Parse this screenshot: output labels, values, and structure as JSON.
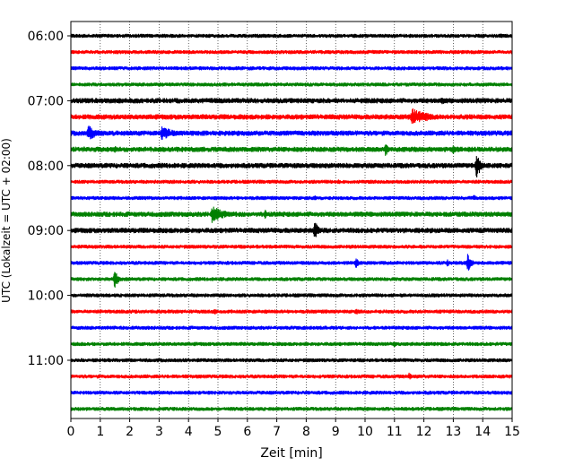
{
  "chart_data": {
    "type": "line",
    "chart_kind": "helicorder",
    "xlabel": "Zeit  [min]",
    "ylabel": "UTC (Lokalzeit = UTC + 02:00)",
    "xlim": [
      0,
      15
    ],
    "x_ticks": [
      "0",
      "1",
      "2",
      "3",
      "4",
      "5",
      "6",
      "7",
      "8",
      "9",
      "10",
      "11",
      "12",
      "13",
      "14",
      "15"
    ],
    "grid": "vertical dotted gridlines at each minute",
    "row_count": 24,
    "row_minutes": 15,
    "y_ticks": [
      {
        "label": "06:00",
        "row": 0
      },
      {
        "label": "07:00",
        "row": 4
      },
      {
        "label": "08:00",
        "row": 8
      },
      {
        "label": "09:00",
        "row": 12
      },
      {
        "label": "10:00",
        "row": 16
      },
      {
        "label": "11:00",
        "row": 20
      }
    ],
    "row_colors": [
      "#000000",
      "#ff0000",
      "#0000ff",
      "#008000"
    ],
    "rows": [
      {
        "start": "06:00",
        "color": "#000000",
        "noise": 1.5,
        "events": [
          {
            "min": 14.6,
            "amp": 4
          }
        ]
      },
      {
        "start": "06:15",
        "color": "#ff0000",
        "noise": 1.5,
        "events": [
          {
            "min": 3.3,
            "amp": 3
          }
        ]
      },
      {
        "start": "06:30",
        "color": "#0000ff",
        "noise": 1.5,
        "events": []
      },
      {
        "start": "06:45",
        "color": "#008000",
        "noise": 1.5,
        "events": []
      },
      {
        "start": "07:00",
        "color": "#000000",
        "noise": 2,
        "events": [
          {
            "min": 10.0,
            "amp": 5
          },
          {
            "min": 12.6,
            "amp": 6
          }
        ]
      },
      {
        "start": "07:15",
        "color": "#ff0000",
        "noise": 2,
        "events": [
          {
            "min": 11.6,
            "amp": 10,
            "dur": 2.0
          }
        ]
      },
      {
        "start": "07:30",
        "color": "#0000ff",
        "noise": 2,
        "events": [
          {
            "min": 0.6,
            "amp": 9,
            "dur": 1.0
          },
          {
            "min": 3.1,
            "amp": 9,
            "dur": 1.2
          }
        ]
      },
      {
        "start": "07:45",
        "color": "#008000",
        "noise": 2,
        "events": [
          {
            "min": 1.5,
            "amp": 4
          },
          {
            "min": 8.1,
            "amp": 3
          },
          {
            "min": 10.7,
            "amp": 8
          },
          {
            "min": 13.0,
            "amp": 6
          }
        ]
      },
      {
        "start": "08:00",
        "color": "#000000",
        "noise": 2,
        "events": [
          {
            "min": 13.8,
            "amp": 18
          }
        ]
      },
      {
        "start": "08:15",
        "color": "#ff0000",
        "noise": 1.5,
        "events": [
          {
            "min": 9.1,
            "amp": 3
          }
        ]
      },
      {
        "start": "08:30",
        "color": "#0000ff",
        "noise": 1.5,
        "events": [
          {
            "min": 8.3,
            "amp": 3
          },
          {
            "min": 13.7,
            "amp": 4
          }
        ]
      },
      {
        "start": "08:45",
        "color": "#008000",
        "noise": 2,
        "events": [
          {
            "min": 4.8,
            "amp": 10,
            "dur": 1.4
          },
          {
            "min": 6.6,
            "amp": 6
          }
        ]
      },
      {
        "start": "09:00",
        "color": "#000000",
        "noise": 2,
        "events": [
          {
            "min": 8.3,
            "amp": 12
          }
        ]
      },
      {
        "start": "09:15",
        "color": "#ff0000",
        "noise": 1.5,
        "events": []
      },
      {
        "start": "09:30",
        "color": "#0000ff",
        "noise": 1.5,
        "events": [
          {
            "min": 9.7,
            "amp": 7
          },
          {
            "min": 12.8,
            "amp": 5
          },
          {
            "min": 13.5,
            "amp": 12
          }
        ]
      },
      {
        "start": "09:45",
        "color": "#008000",
        "noise": 1.5,
        "events": [
          {
            "min": 1.5,
            "amp": 12
          }
        ]
      },
      {
        "start": "10:00",
        "color": "#000000",
        "noise": 1.5,
        "events": []
      },
      {
        "start": "10:15",
        "color": "#ff0000",
        "noise": 1.5,
        "events": [
          {
            "min": 4.9,
            "amp": 4
          },
          {
            "min": 9.7,
            "amp": 4
          }
        ]
      },
      {
        "start": "10:30",
        "color": "#0000ff",
        "noise": 1.5,
        "events": []
      },
      {
        "start": "10:45",
        "color": "#008000",
        "noise": 1.5,
        "events": [
          {
            "min": 11.0,
            "amp": 4
          }
        ]
      },
      {
        "start": "11:00",
        "color": "#000000",
        "noise": 1.5,
        "events": []
      },
      {
        "start": "11:15",
        "color": "#ff0000",
        "noise": 1.5,
        "events": [
          {
            "min": 11.5,
            "amp": 5
          }
        ]
      },
      {
        "start": "11:30",
        "color": "#0000ff",
        "noise": 1.5,
        "events": [
          {
            "min": 4.0,
            "amp": 3
          }
        ]
      },
      {
        "start": "11:45",
        "color": "#008000",
        "noise": 1.5,
        "events": []
      }
    ]
  }
}
